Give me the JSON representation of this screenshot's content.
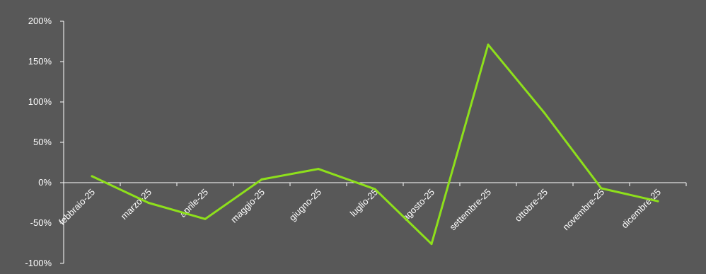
{
  "chart_data": {
    "type": "line",
    "title": "",
    "xlabel": "",
    "ylabel": "",
    "categories": [
      "febbraio-25",
      "marzo-25",
      "aprile-25",
      "maggio-25",
      "giugno-25",
      "luglio-25",
      "agosto-25",
      "settembre-25",
      "ottobre-25",
      "novembre-25",
      "dicembre-25"
    ],
    "series": [
      {
        "values": [
          8,
          -25,
          -45,
          4,
          17,
          -8,
          -76,
          171,
          86,
          -7,
          -23
        ],
        "color": "#8ee01b"
      }
    ],
    "yticks": [
      "200%",
      "150%",
      "100%",
      "50%",
      "0%",
      "-50%",
      "-100%"
    ],
    "ylim": [
      -100,
      200
    ],
    "grid": false,
    "legend": "none"
  },
  "style": {
    "background": "#585858",
    "axis_color": "#ffffff",
    "text_color": "#ffffff",
    "line_color": "#8ee01b"
  }
}
